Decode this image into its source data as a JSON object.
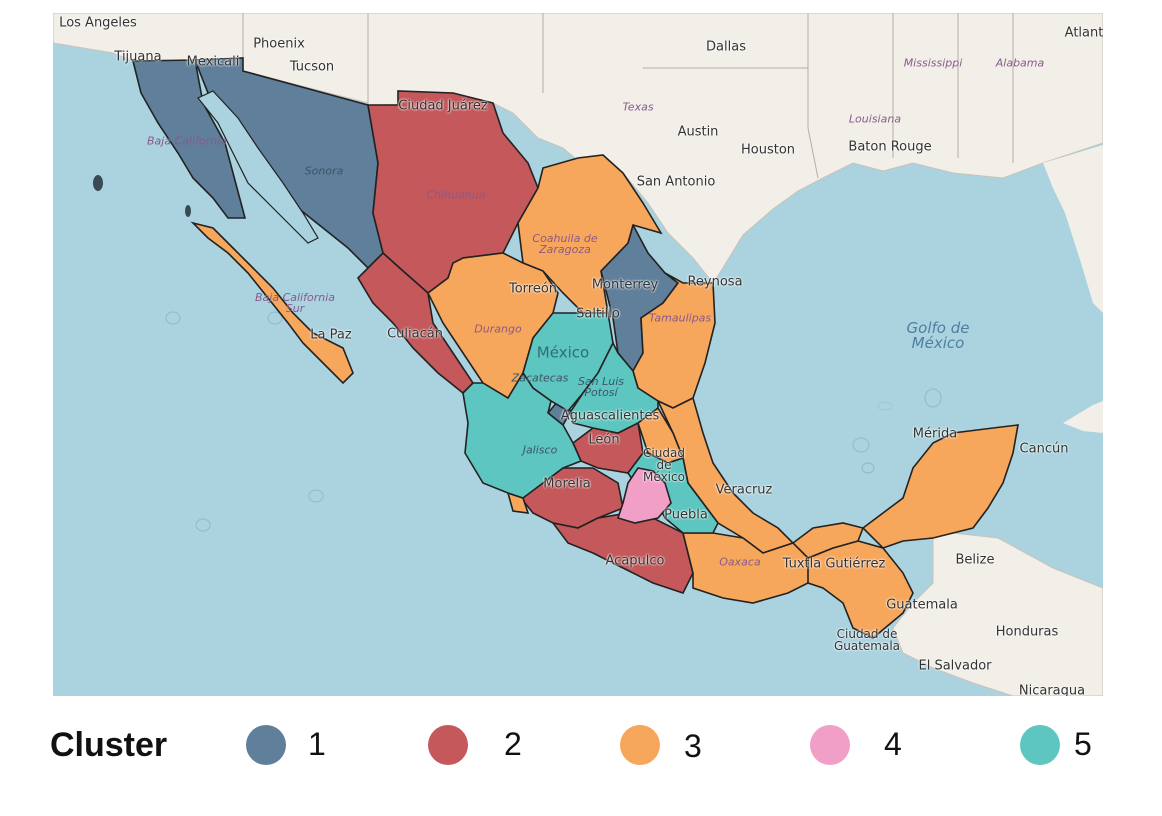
{
  "legend": {
    "title": "Cluster",
    "items": [
      {
        "label": "1",
        "color": "#5f7f9b"
      },
      {
        "label": "2",
        "color": "#c4585b"
      },
      {
        "label": "3",
        "color": "#f7a75c"
      },
      {
        "label": "4",
        "color": "#f29fc8"
      },
      {
        "label": "5",
        "color": "#5ec6c0"
      }
    ]
  },
  "map": {
    "colors": {
      "ocean": "#aad3df",
      "land": "#f2efe9",
      "outline": "#222222"
    },
    "cities": {
      "los_angeles": "Los Angeles",
      "phoenix": "Phoenix",
      "tijuana": "Tijuana",
      "mexicali": "Mexicali",
      "tucson": "Tucson",
      "dallas": "Dallas",
      "atlanta": "Atlant",
      "austin": "Austin",
      "houston": "Houston",
      "baton_rouge": "Baton Rouge",
      "san_antonio": "San Antonio",
      "ciudad_juarez": "Ciudad Juárez",
      "torreon": "Torreón",
      "monterrey": "Monterrey",
      "reynosa": "Reynosa",
      "saltillo": "Saltillo",
      "culiacan": "Culiacán",
      "la_paz": "La Paz",
      "mexico": "México",
      "aguascalientes": "Aguascalientes",
      "leon": "León",
      "morelia": "Morelia",
      "ciudad_mexico": "Ciudad de México",
      "puebla": "Puebla",
      "veracruz": "Veracruz",
      "acapulco": "Acapulco",
      "tuxtla": "Tuxtla Gutiérrez",
      "merida": "Mérida",
      "cancun": "Cancún",
      "belize": "Belize",
      "guatemala": "Guatemala",
      "ciudad_guatemala": "Ciudad de Guatemala",
      "honduras": "Honduras",
      "el_salvador": "El Salvador",
      "nicaragua": "Nicaragua"
    },
    "regions": {
      "mississippi": "Mississippi",
      "alabama": "Alabama",
      "texas": "Texas",
      "louisiana": "Louisiana",
      "baja_california": "Baja California",
      "sonora": "Sonora",
      "chihuahua": "Chihuahua",
      "coahuila": "Coahuila de Zaragoza",
      "baja_california_sur": "Baja California Sur",
      "durango": "Durango",
      "tamaulipas": "Tamaulipas",
      "zacatecas": "Zacatecas",
      "san_luis": "San Luis Potosí",
      "jalisco": "Jalisco",
      "oaxaca": "Oaxaca"
    },
    "water": {
      "gulf": "Golfo de México"
    }
  }
}
